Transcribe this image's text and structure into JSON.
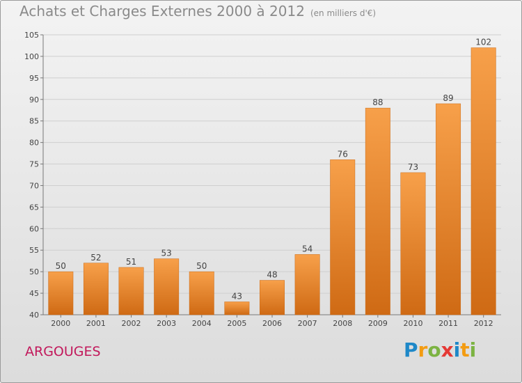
{
  "title": "Achats et Charges Externes 2000 à 2012",
  "unit": "(en milliers d'€)",
  "location": "ARGOUGES",
  "logo": {
    "letters": [
      "P",
      "r",
      "o",
      "x",
      "i",
      "t",
      "i"
    ],
    "colors": [
      "#1e88c8",
      "#f39c12",
      "#7cb342",
      "#e53935",
      "#1e88c8",
      "#f39c12",
      "#7cb342"
    ]
  },
  "colors": {
    "bar_light": "#f7a04a",
    "bar_dark": "#cf6a14",
    "grid": "#cfcfcf",
    "text": "#444444"
  },
  "chart_data": {
    "type": "bar",
    "categories": [
      "2000",
      "2001",
      "2002",
      "2003",
      "2004",
      "2005",
      "2006",
      "2007",
      "2008",
      "2009",
      "2010",
      "2011",
      "2012"
    ],
    "values": [
      50,
      52,
      51,
      53,
      50,
      43,
      48,
      54,
      76,
      88,
      73,
      89,
      102
    ],
    "ylim": [
      40,
      105
    ],
    "yticks": [
      40,
      45,
      50,
      55,
      60,
      65,
      70,
      75,
      80,
      85,
      90,
      95,
      100,
      105
    ],
    "grid": true,
    "title": "Achats et Charges Externes 2000 à 2012",
    "xlabel": "",
    "ylabel": ""
  }
}
